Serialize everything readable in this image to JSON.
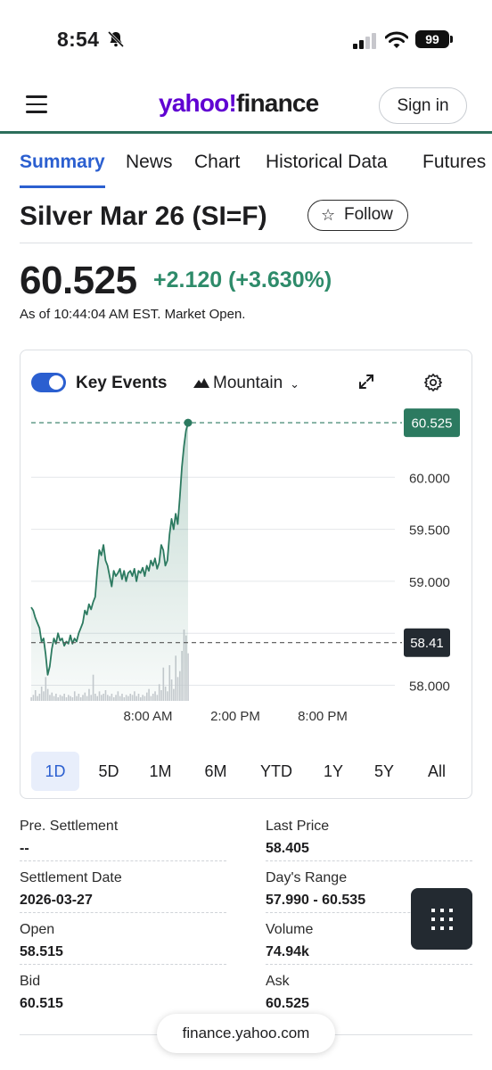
{
  "status_bar": {
    "time": "8:54",
    "battery": "99"
  },
  "header": {
    "logo_part1": "yahoo!",
    "logo_part2": "finance",
    "signin_label": "Sign in"
  },
  "tabs": [
    {
      "label": "Summary",
      "active": true
    },
    {
      "label": "News"
    },
    {
      "label": "Chart"
    },
    {
      "label": "Historical Data"
    },
    {
      "label": "Futures"
    }
  ],
  "quote": {
    "title": "Silver Mar 26 (SI=F)",
    "follow_label": "Follow",
    "price": "60.525",
    "change": "+2.120 (+3.630%)",
    "as_of": "As of 10:44:04 AM EST. Market Open."
  },
  "chart_controls": {
    "key_events_label": "Key Events",
    "key_events_on": true,
    "chart_type_label": "Mountain"
  },
  "colors": {
    "accent": "#2b5fd0",
    "positive": "#2e8b6a",
    "line": "#2c7a60",
    "brand": "#6001d2"
  },
  "chart_data": {
    "type": "area",
    "title": "",
    "xlabel": "",
    "ylabel": "",
    "ylim": [
      57.85,
      60.62
    ],
    "x_ticks": [
      "8:00 AM",
      "2:00 PM",
      "8:00 PM"
    ],
    "y_ticks": [
      "60.000",
      "59.500",
      "59.000",
      "58.500",
      "58.000"
    ],
    "current_price_label": "60.525",
    "current_price": 60.525,
    "prev_close_label": "58.41",
    "prev_close": 58.41,
    "grid": true,
    "series": [
      {
        "values": [
          58.75,
          58.72,
          58.65,
          58.6,
          58.55,
          58.42,
          58.45,
          58.3,
          58.1,
          58.18,
          58.35,
          58.45,
          58.4,
          58.5,
          58.43,
          58.45,
          58.38,
          58.42,
          58.4,
          58.48,
          58.4,
          58.45,
          58.42,
          58.5,
          58.55,
          58.6,
          58.72,
          58.68,
          58.78,
          58.73,
          58.8,
          58.85,
          59.1,
          59.3,
          59.25,
          59.35,
          59.2,
          59.15,
          59.05,
          58.95,
          59.1,
          59.05,
          59.08,
          59.12,
          59.02,
          59.1,
          59.0,
          59.08,
          59.1,
          59.05,
          59.12,
          59.0,
          59.1,
          59.08,
          59.13,
          59.05,
          59.15,
          59.1,
          59.2,
          59.15,
          59.22,
          59.12,
          59.18,
          59.35,
          59.3,
          59.15,
          59.2,
          59.45,
          59.6,
          59.5,
          59.65,
          59.55,
          59.8,
          60.1,
          60.3,
          60.45,
          60.525
        ]
      }
    ],
    "volume": [
      3,
      5,
      9,
      4,
      6,
      12,
      8,
      20,
      10,
      5,
      7,
      4,
      6,
      3,
      5,
      4,
      6,
      3,
      5,
      4,
      3,
      8,
      4,
      6,
      3,
      5,
      7,
      4,
      10,
      5,
      22,
      6,
      4,
      8,
      5,
      6,
      9,
      5,
      4,
      6,
      3,
      5,
      8,
      4,
      6,
      3,
      5,
      4,
      6,
      5,
      8,
      4,
      6,
      3,
      5,
      4,
      7,
      10,
      4,
      6,
      8,
      5,
      14,
      9,
      28,
      12,
      8,
      30,
      18,
      10,
      38,
      20,
      25,
      42,
      60,
      55,
      40
    ]
  },
  "ranges": [
    {
      "label": "1D",
      "active": true
    },
    {
      "label": "5D"
    },
    {
      "label": "1M"
    },
    {
      "label": "6M"
    },
    {
      "label": "YTD"
    },
    {
      "label": "1Y"
    },
    {
      "label": "5Y"
    },
    {
      "label": "All"
    }
  ],
  "stats": [
    {
      "label": "Pre. Settlement",
      "value": "--"
    },
    {
      "label": "Last Price",
      "value": "58.405"
    },
    {
      "label": "Settlement Date",
      "value": "2026-03-27"
    },
    {
      "label": "Day's Range",
      "value": "57.990 - 60.535"
    },
    {
      "label": "Open",
      "value": "58.515"
    },
    {
      "label": "Volume",
      "value": "74.94k"
    },
    {
      "label": "Bid",
      "value": "60.515"
    },
    {
      "label": "Ask",
      "value": "60.525"
    }
  ],
  "browser": {
    "url": "finance.yahoo.com"
  }
}
